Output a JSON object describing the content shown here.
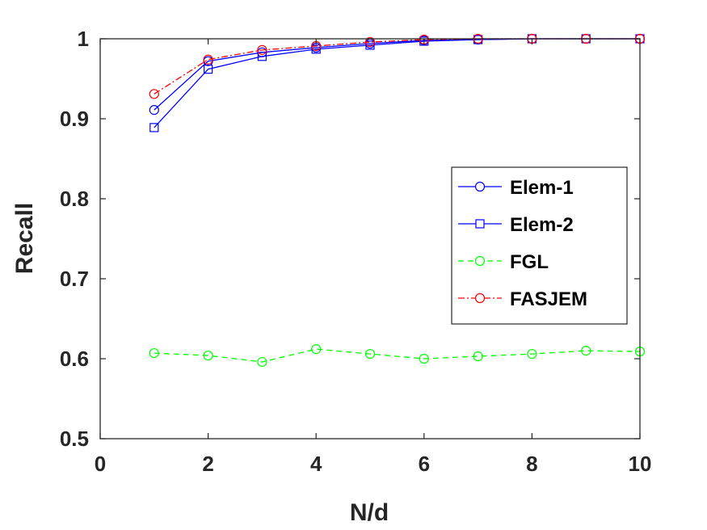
{
  "chart_data": {
    "type": "line",
    "xlabel": "N/d",
    "ylabel": "Recall",
    "xlim": [
      0,
      10
    ],
    "ylim": [
      0.5,
      1
    ],
    "x_ticks": [
      "0",
      "2",
      "4",
      "6",
      "8",
      "10"
    ],
    "y_ticks": [
      "0.5",
      "0.6",
      "0.7",
      "0.8",
      "0.9",
      "1"
    ],
    "grid": false,
    "legend_position": "right",
    "x": [
      1,
      2,
      3,
      4,
      5,
      6,
      7,
      8,
      9,
      10
    ],
    "series": [
      {
        "name": "Elem-1",
        "color": "#0000ff",
        "marker": "circle",
        "dash": "solid",
        "values": [
          0.911,
          0.972,
          0.983,
          0.989,
          0.994,
          0.998,
          0.999,
          1.0,
          1.0,
          1.0
        ]
      },
      {
        "name": "Elem-2",
        "color": "#0000ff",
        "marker": "square",
        "dash": "solid",
        "values": [
          0.889,
          0.962,
          0.978,
          0.987,
          0.992,
          0.997,
          0.999,
          1.0,
          1.0,
          1.0
        ]
      },
      {
        "name": "FGL",
        "color": "#00ff00",
        "marker": "circle",
        "dash": "dashed",
        "values": [
          0.607,
          0.604,
          0.596,
          0.612,
          0.606,
          0.6,
          0.603,
          0.606,
          0.61,
          0.609
        ]
      },
      {
        "name": "FASJEM",
        "color": "#ff0000",
        "marker": "circle",
        "dash": "dashdot",
        "values": [
          0.931,
          0.974,
          0.986,
          0.991,
          0.996,
          0.999,
          1.0,
          1.0,
          1.0,
          1.0
        ]
      }
    ]
  }
}
